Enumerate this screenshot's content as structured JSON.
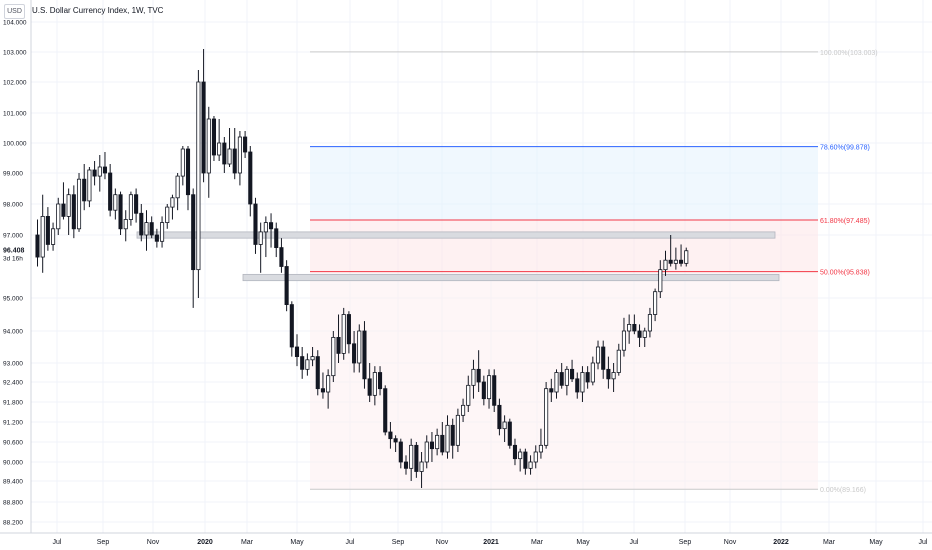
{
  "header": {
    "currency": "USD",
    "title": "U.S. Dollar Currency Index, 1W, TVC"
  },
  "price_badge": {
    "price": "96.408",
    "countdown": "3d 16h"
  },
  "chart_data": {
    "type": "candlestick",
    "title": "U.S. Dollar Currency Index, 1W, TVC",
    "y_ticks": [
      "104.000",
      "103.000",
      "102.000",
      "101.000",
      "100.000",
      "99.000",
      "98.000",
      "97.000",
      "96.408",
      "95.000",
      "94.000",
      "93.000",
      "92.400",
      "91.800",
      "91.200",
      "90.600",
      "90.000",
      "89.400",
      "88.800",
      "88.200"
    ],
    "x_ticks": [
      "Jul",
      "Sep",
      "Nov",
      "2020",
      "Mar",
      "May",
      "Jul",
      "Sep",
      "Nov",
      "2021",
      "Mar",
      "May",
      "Jul",
      "Sep",
      "Nov",
      "2022",
      "Mar",
      "May",
      "Jul"
    ],
    "fib_levels": [
      {
        "label": "100.00%(103.003)",
        "value": 103.003,
        "color": "#c9c9c9"
      },
      {
        "label": "78.60%(99.878)",
        "value": 99.878,
        "color": "#2962ff"
      },
      {
        "label": "61.80%(97.485)",
        "value": 97.485,
        "color": "#f23645"
      },
      {
        "label": "50.00%(95.838)",
        "value": 95.838,
        "color": "#f23645"
      },
      {
        "label": "0.00%(89.166)",
        "value": 89.166,
        "color": "#c9c9c9"
      }
    ],
    "zones": [
      {
        "name": "resistance-zone",
        "top": 97.1,
        "bottom": 96.9
      },
      {
        "name": "support-zone",
        "top": 95.75,
        "bottom": 95.55
      }
    ],
    "candles": [
      [
        97.0,
        97.5,
        96.0,
        96.3
      ],
      [
        96.3,
        98.3,
        95.8,
        97.6
      ],
      [
        97.6,
        97.9,
        96.5,
        96.7
      ],
      [
        96.7,
        97.4,
        96.5,
        97.2
      ],
      [
        97.2,
        98.2,
        97.0,
        98.0
      ],
      [
        98.0,
        98.7,
        97.5,
        97.6
      ],
      [
        97.6,
        98.5,
        97.0,
        98.3
      ],
      [
        98.3,
        98.6,
        96.9,
        97.2
      ],
      [
        97.2,
        99.0,
        97.1,
        98.8
      ],
      [
        98.8,
        99.3,
        97.8,
        98.1
      ],
      [
        98.1,
        99.2,
        97.9,
        99.1
      ],
      [
        99.1,
        99.4,
        98.6,
        98.9
      ],
      [
        98.9,
        99.6,
        98.4,
        99.2
      ],
      [
        99.2,
        99.7,
        98.8,
        99.0
      ],
      [
        99.0,
        99.3,
        97.6,
        97.8
      ],
      [
        97.8,
        98.5,
        97.5,
        98.3
      ],
      [
        98.3,
        98.4,
        97.0,
        97.2
      ],
      [
        97.2,
        97.8,
        96.8,
        97.5
      ],
      [
        97.5,
        98.4,
        97.3,
        98.3
      ],
      [
        98.3,
        98.5,
        97.4,
        97.7
      ],
      [
        97.7,
        98.0,
        96.8,
        97.0
      ],
      [
        97.0,
        97.8,
        96.5,
        97.4
      ],
      [
        97.4,
        97.6,
        96.9,
        97.0
      ],
      [
        97.0,
        97.2,
        96.6,
        96.8
      ],
      [
        96.8,
        97.6,
        96.6,
        97.4
      ],
      [
        97.4,
        98.0,
        97.2,
        97.9
      ],
      [
        97.9,
        98.3,
        97.5,
        98.2
      ],
      [
        98.2,
        99.0,
        97.8,
        98.9
      ],
      [
        98.9,
        99.9,
        98.6,
        99.8
      ],
      [
        99.8,
        99.9,
        97.8,
        98.3
      ],
      [
        98.3,
        98.5,
        94.7,
        95.9
      ],
      [
        95.9,
        102.4,
        95.0,
        102.0
      ],
      [
        102.0,
        103.1,
        98.7,
        99.0
      ],
      [
        99.0,
        101.2,
        98.2,
        100.8
      ],
      [
        100.8,
        100.9,
        99.4,
        99.6
      ],
      [
        99.6,
        100.8,
        99.4,
        100.0
      ],
      [
        100.0,
        100.2,
        99.0,
        99.3
      ],
      [
        99.3,
        100.5,
        99.2,
        99.8
      ],
      [
        99.8,
        100.5,
        98.8,
        99.0
      ],
      [
        99.0,
        100.4,
        98.6,
        100.2
      ],
      [
        100.2,
        100.4,
        99.5,
        99.7
      ],
      [
        99.7,
        99.9,
        97.6,
        98.0
      ],
      [
        98.0,
        98.2,
        96.4,
        96.7
      ],
      [
        96.7,
        97.4,
        95.8,
        97.1
      ],
      [
        97.1,
        97.6,
        96.3,
        97.4
      ],
      [
        97.4,
        97.7,
        96.6,
        97.2
      ],
      [
        97.2,
        97.4,
        96.3,
        96.6
      ],
      [
        96.6,
        96.9,
        95.8,
        96.0
      ],
      [
        96.0,
        96.2,
        94.6,
        94.8
      ],
      [
        94.8,
        94.9,
        93.2,
        93.5
      ],
      [
        93.5,
        93.9,
        92.9,
        93.2
      ],
      [
        93.2,
        93.5,
        92.5,
        92.8
      ],
      [
        92.8,
        93.3,
        92.6,
        93.1
      ],
      [
        93.1,
        93.5,
        92.9,
        93.2
      ],
      [
        93.2,
        93.4,
        92.0,
        92.2
      ],
      [
        92.2,
        92.7,
        91.9,
        92.1
      ],
      [
        92.1,
        92.8,
        91.6,
        92.6
      ],
      [
        92.6,
        94.0,
        92.4,
        93.8
      ],
      [
        93.8,
        94.5,
        93.0,
        93.3
      ],
      [
        93.3,
        94.7,
        93.1,
        94.5
      ],
      [
        94.5,
        94.6,
        93.3,
        93.6
      ],
      [
        93.6,
        94.0,
        92.7,
        93.0
      ],
      [
        93.0,
        94.2,
        92.7,
        94.0
      ],
      [
        94.0,
        94.3,
        92.2,
        92.5
      ],
      [
        92.5,
        93.0,
        91.8,
        92.0
      ],
      [
        92.0,
        92.9,
        91.7,
        92.7
      ],
      [
        92.7,
        92.9,
        92.0,
        92.2
      ],
      [
        92.2,
        92.3,
        90.8,
        90.9
      ],
      [
        90.9,
        91.2,
        90.4,
        90.7
      ],
      [
        90.7,
        90.8,
        90.3,
        90.6
      ],
      [
        90.6,
        90.7,
        89.8,
        90.0
      ],
      [
        90.0,
        90.2,
        89.6,
        89.8
      ],
      [
        89.8,
        90.7,
        89.4,
        90.5
      ],
      [
        90.5,
        90.6,
        89.5,
        89.7
      ],
      [
        89.7,
        90.3,
        89.2,
        90.0
      ],
      [
        90.0,
        90.8,
        89.8,
        90.6
      ],
      [
        90.6,
        90.9,
        90.0,
        90.4
      ],
      [
        90.4,
        91.0,
        90.2,
        90.8
      ],
      [
        90.8,
        91.2,
        90.2,
        90.3
      ],
      [
        90.3,
        91.4,
        90.1,
        91.1
      ],
      [
        91.1,
        91.3,
        90.1,
        90.5
      ],
      [
        90.5,
        91.6,
        90.3,
        91.4
      ],
      [
        91.4,
        91.9,
        91.2,
        91.7
      ],
      [
        91.7,
        92.6,
        91.5,
        92.3
      ],
      [
        92.3,
        93.1,
        91.9,
        92.8
      ],
      [
        92.8,
        93.4,
        92.1,
        92.4
      ],
      [
        92.4,
        92.6,
        91.7,
        91.9
      ],
      [
        91.9,
        92.8,
        91.6,
        92.6
      ],
      [
        92.6,
        92.8,
        91.5,
        91.7
      ],
      [
        91.7,
        91.9,
        90.8,
        91.0
      ],
      [
        91.0,
        91.4,
        90.6,
        91.2
      ],
      [
        91.2,
        91.3,
        90.4,
        90.5
      ],
      [
        90.5,
        90.7,
        89.9,
        90.1
      ],
      [
        90.1,
        90.4,
        89.7,
        90.3
      ],
      [
        90.3,
        90.4,
        89.6,
        89.8
      ],
      [
        89.8,
        90.2,
        89.6,
        90.0
      ],
      [
        90.0,
        90.5,
        89.8,
        90.3
      ],
      [
        90.3,
        91.0,
        90.1,
        90.5
      ],
      [
        90.5,
        92.4,
        90.4,
        92.2
      ],
      [
        92.2,
        92.5,
        91.8,
        92.1
      ],
      [
        92.1,
        92.8,
        91.9,
        92.7
      ],
      [
        92.7,
        93.0,
        92.2,
        92.3
      ],
      [
        92.3,
        92.9,
        92.0,
        92.8
      ],
      [
        92.8,
        93.1,
        92.4,
        92.5
      ],
      [
        92.5,
        92.7,
        91.9,
        92.1
      ],
      [
        92.1,
        92.9,
        91.8,
        92.7
      ],
      [
        92.7,
        92.9,
        92.2,
        92.4
      ],
      [
        92.4,
        93.2,
        92.3,
        93.0
      ],
      [
        93.0,
        93.7,
        92.8,
        93.5
      ],
      [
        93.5,
        93.7,
        92.5,
        92.8
      ],
      [
        92.8,
        93.2,
        92.2,
        92.5
      ],
      [
        92.5,
        93.0,
        92.1,
        92.7
      ],
      [
        92.7,
        93.6,
        92.6,
        93.4
      ],
      [
        93.4,
        94.4,
        93.2,
        94.0
      ],
      [
        94.0,
        94.5,
        93.6,
        94.2
      ],
      [
        94.2,
        94.5,
        93.9,
        94.0
      ],
      [
        94.0,
        94.2,
        93.5,
        93.8
      ],
      [
        93.8,
        94.1,
        93.5,
        94.0
      ],
      [
        94.0,
        94.7,
        93.8,
        94.5
      ],
      [
        94.5,
        95.3,
        94.3,
        95.2
      ],
      [
        95.2,
        96.2,
        95.0,
        95.9
      ],
      [
        95.9,
        96.5,
        95.7,
        96.2
      ],
      [
        96.2,
        97.0,
        96.0,
        96.1
      ],
      [
        96.1,
        96.6,
        95.9,
        96.2
      ],
      [
        96.2,
        96.7,
        96.0,
        96.1
      ],
      [
        96.1,
        96.6,
        96.0,
        96.5
      ]
    ]
  }
}
